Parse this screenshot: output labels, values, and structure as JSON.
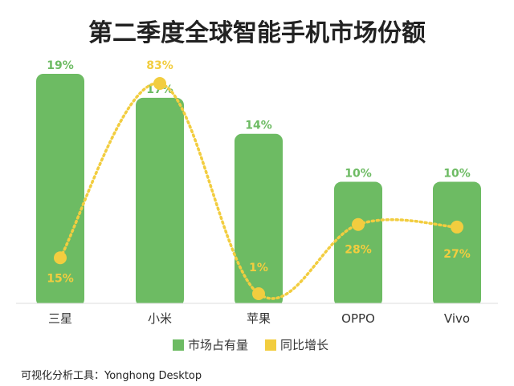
{
  "chart_data": {
    "type": "bar",
    "title": "第二季度全球智能手机市场份额",
    "categories": [
      "三星",
      "小米",
      "苹果",
      "OPPO",
      "Vivo"
    ],
    "series": [
      {
        "name": "市场占有量",
        "kind": "bar",
        "values": [
          19,
          17,
          14,
          10,
          10
        ],
        "labels": [
          "19%",
          "17%",
          "14%",
          "10%",
          "10%"
        ],
        "color": "#6dbb63"
      },
      {
        "name": "同比增长",
        "kind": "line",
        "style": "dotted-smooth",
        "values": [
          15,
          83,
          1,
          28,
          27
        ],
        "labels": [
          "15%",
          "83%",
          "1%",
          "28%",
          "27%"
        ],
        "color": "#f2cd3f"
      }
    ],
    "legend": "bottom-center",
    "grid": false
  },
  "source_text": "可视化分析工具：Yonghong Desktop"
}
